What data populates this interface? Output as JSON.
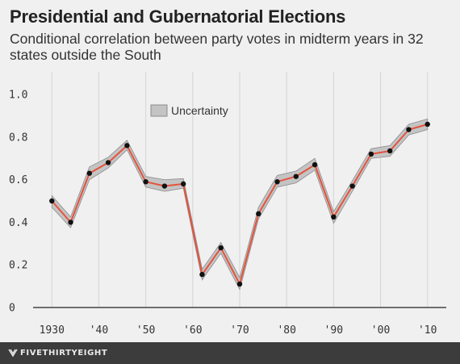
{
  "header": {
    "title": "Presidential and Gubernatorial Elections",
    "subtitle": "Conditional correlation between party votes in midterm years in 32 states outside the South"
  },
  "legend": {
    "uncertainty_label": "Uncertainty"
  },
  "footer": {
    "brand": "FIVETHIRTYEIGHT"
  },
  "colors": {
    "line": "#e5533d",
    "band": "#c4c4c4",
    "band_edge": "#8c8c8c",
    "point": "#111111",
    "grid": "#d4d4d4",
    "axis": "#444444",
    "background": "#f0f0f0"
  },
  "chart_data": {
    "type": "line",
    "title": "Presidential and Gubernatorial Elections",
    "subtitle": "Conditional correlation between party votes in midterm years in 32 states outside the South",
    "xlim": [
      1926,
      2014
    ],
    "ylim": [
      0,
      1.0
    ],
    "x_ticks": [
      1930,
      1940,
      1950,
      1960,
      1970,
      1980,
      1990,
      2000,
      2010
    ],
    "x_tick_labels": [
      "1930",
      "'40",
      "'50",
      "'60",
      "'70",
      "'80",
      "'90",
      "'00",
      "'10"
    ],
    "y_ticks": [
      0,
      0.2,
      0.4,
      0.6,
      0.8,
      1.0
    ],
    "y_tick_labels": [
      "0",
      "0.2",
      "0.4",
      "0.6",
      "0.8",
      "1.0"
    ],
    "grid": "vertical",
    "legend_position": "top-left",
    "series": [
      {
        "name": "Uncertainty",
        "x": [
          1930,
          1934,
          1938,
          1942,
          1946,
          1950,
          1954,
          1958,
          1962,
          1966,
          1970,
          1974,
          1978,
          1982,
          1986,
          1990,
          1994,
          1998,
          2002,
          2006,
          2010
        ],
        "values": [
          0.5,
          0.4,
          0.63,
          0.68,
          0.76,
          0.59,
          0.57,
          0.58,
          0.155,
          0.28,
          0.11,
          0.44,
          0.59,
          0.615,
          0.67,
          0.425,
          0.57,
          0.72,
          0.735,
          0.835,
          0.86
        ],
        "lower": [
          0.47,
          0.375,
          0.6,
          0.655,
          0.74,
          0.565,
          0.545,
          0.56,
          0.13,
          0.255,
          0.085,
          0.415,
          0.565,
          0.585,
          0.645,
          0.395,
          0.545,
          0.7,
          0.71,
          0.81,
          0.835
        ],
        "upper": [
          0.525,
          0.425,
          0.66,
          0.705,
          0.785,
          0.615,
          0.6,
          0.605,
          0.18,
          0.305,
          0.14,
          0.47,
          0.62,
          0.64,
          0.7,
          0.45,
          0.595,
          0.745,
          0.76,
          0.86,
          0.885
        ]
      }
    ]
  }
}
